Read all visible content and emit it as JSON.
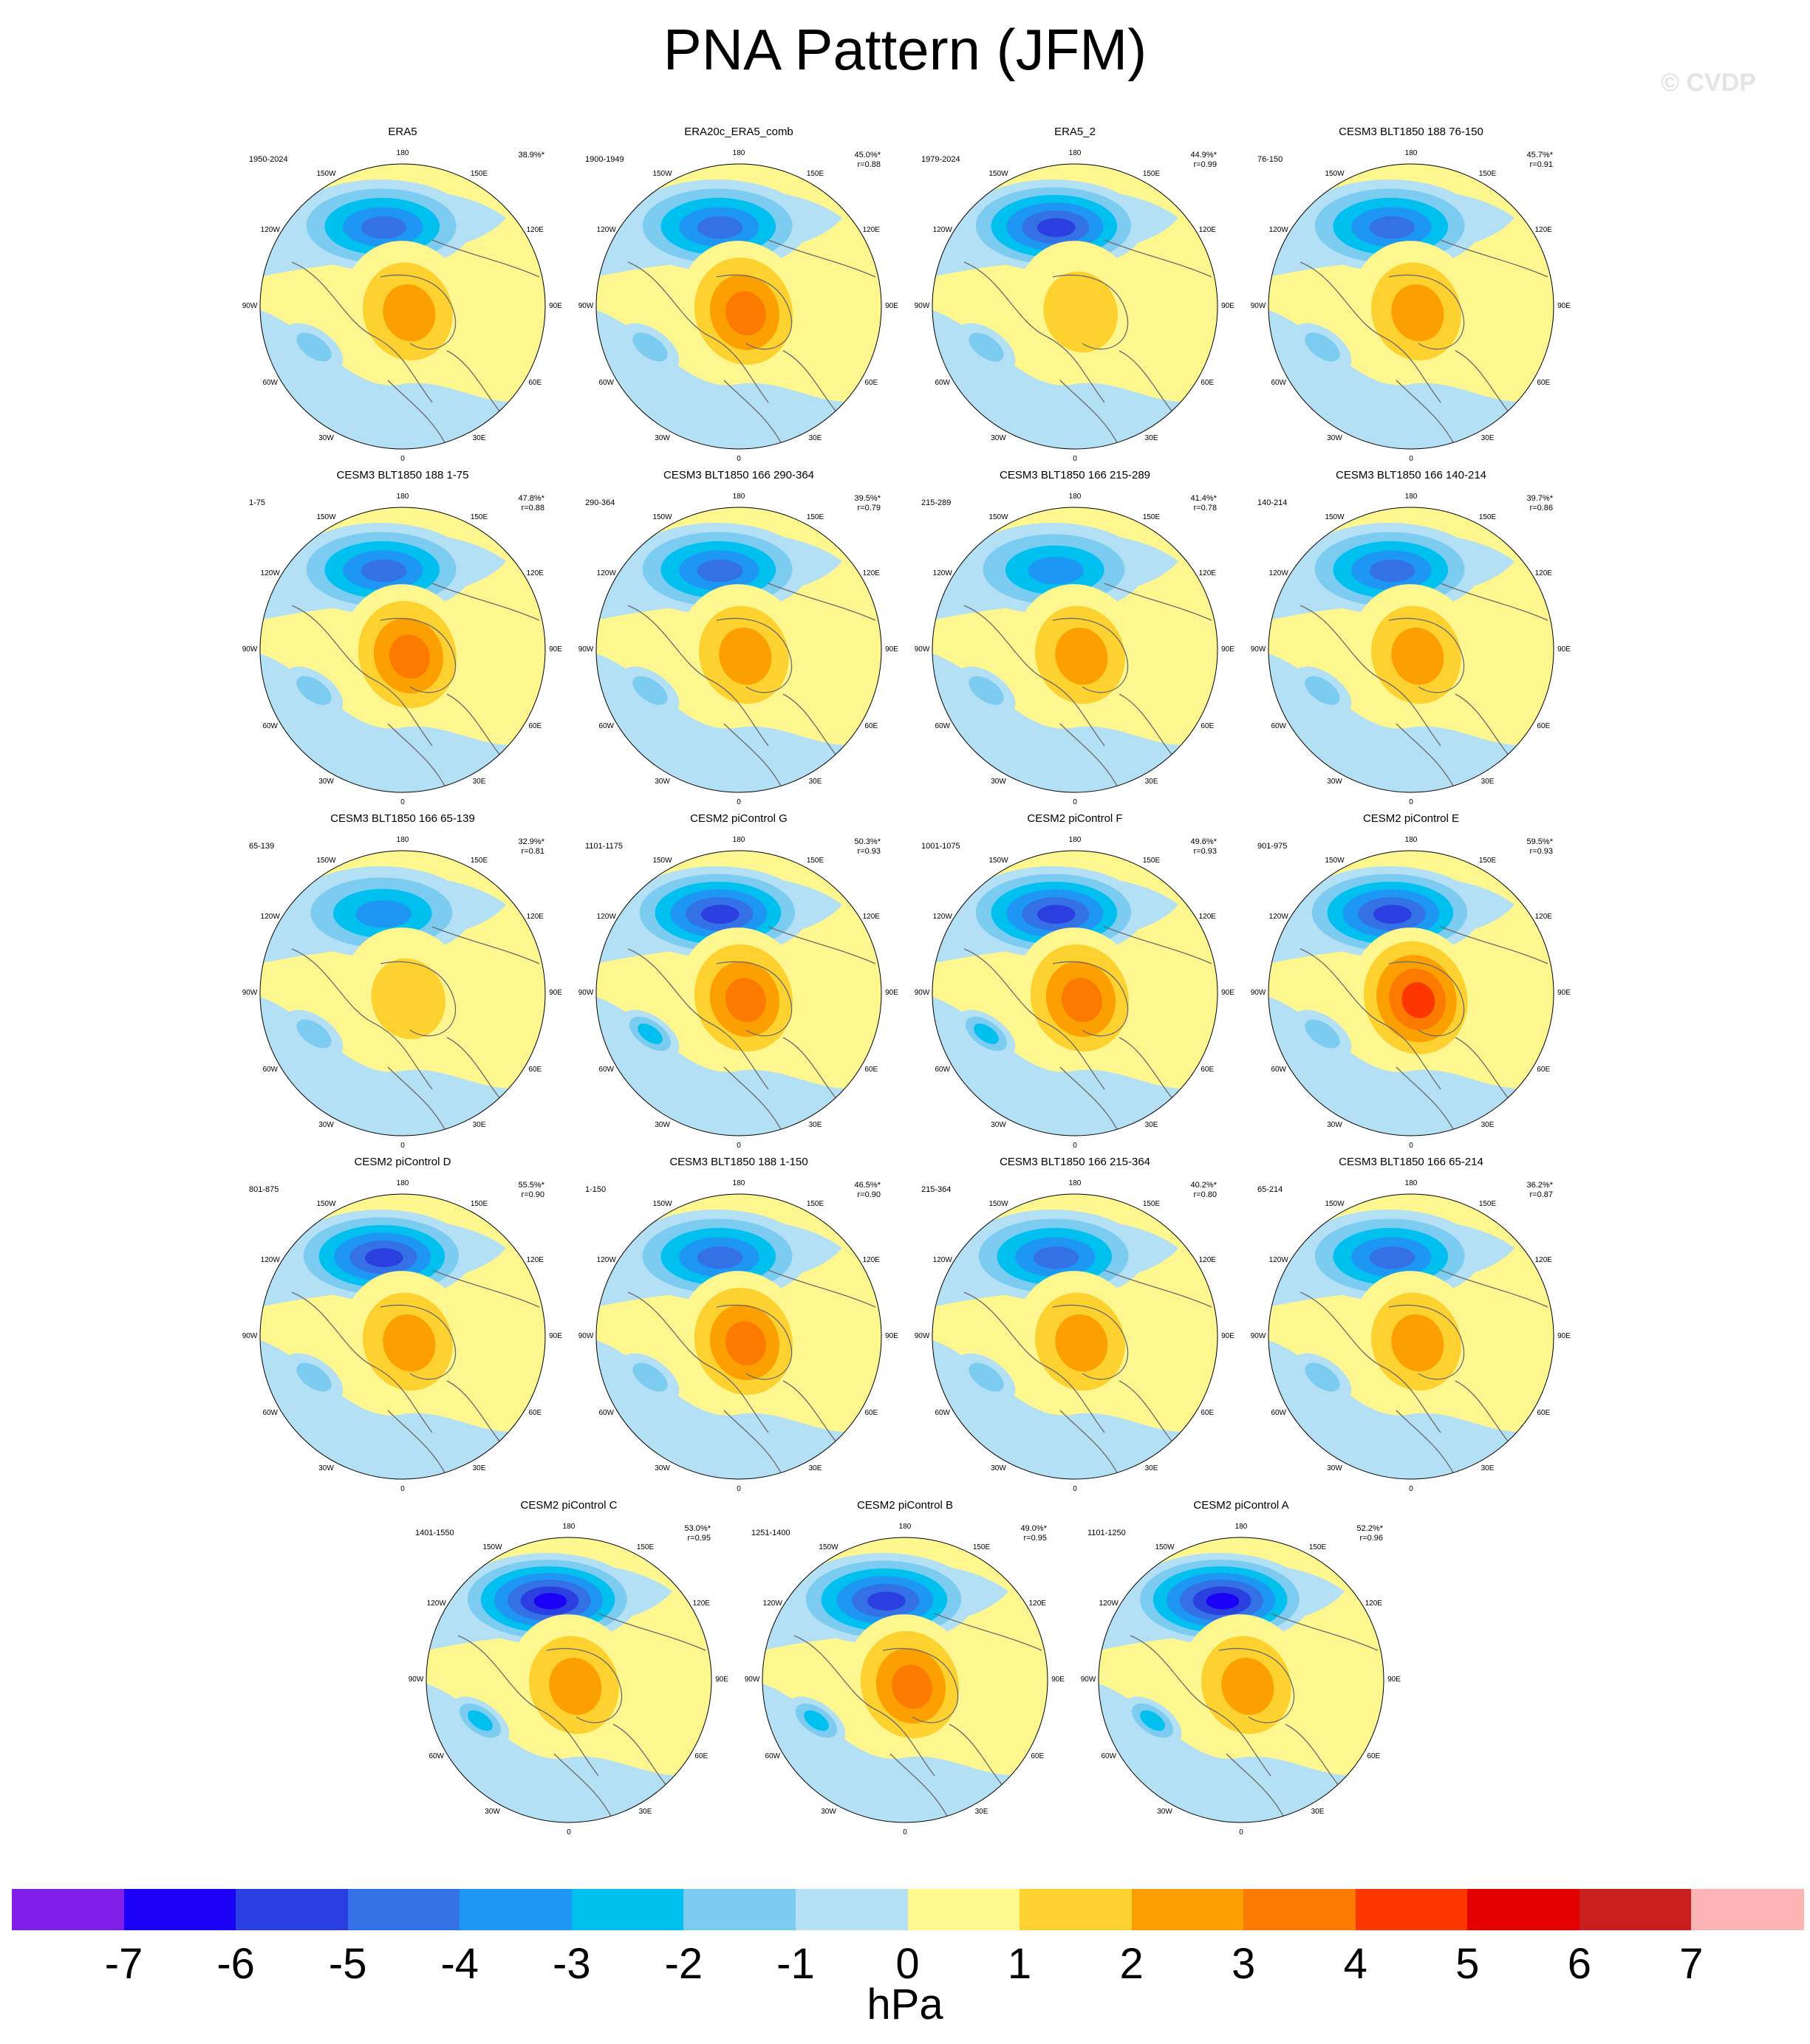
{
  "title": "PNA Pattern (JFM)",
  "watermark": "© CVDP",
  "lon_labels": [
    "180",
    "150E",
    "120E",
    "90E",
    "60E",
    "30E",
    "0",
    "30W",
    "60W",
    "90W",
    "120W",
    "150W"
  ],
  "chart_data": {
    "type": "heatmap",
    "description_of_quantity": "PNA regression pattern",
    "panels": [
      {
        "title": "ERA5",
        "period": "1950-2024",
        "pct": "38.9%*",
        "r": ""
      },
      {
        "title": "ERA20c_ERA5_comb",
        "period": "1900-1949",
        "pct": "45.0%*",
        "r": "r=0.88"
      },
      {
        "title": "ERA5_2",
        "period": "1979-2024",
        "pct": "44.9%*",
        "r": "r=0.99"
      },
      {
        "title": "CESM3 BLT1850 188 76-150",
        "period": "76-150",
        "pct": "45.7%*",
        "r": "r=0.91"
      },
      {
        "title": "CESM3 BLT1850 188 1-75",
        "period": "1-75",
        "pct": "47.8%*",
        "r": "r=0.88"
      },
      {
        "title": "CESM3 BLT1850 166 290-364",
        "period": "290-364",
        "pct": "39.5%*",
        "r": "r=0.79"
      },
      {
        "title": "CESM3 BLT1850 166 215-289",
        "period": "215-289",
        "pct": "41.4%*",
        "r": "r=0.78"
      },
      {
        "title": "CESM3 BLT1850 166 140-214",
        "period": "140-214",
        "pct": "39.7%*",
        "r": "r=0.86"
      },
      {
        "title": "CESM3 BLT1850 166 65-139",
        "period": "65-139",
        "pct": "32.9%*",
        "r": "r=0.81"
      },
      {
        "title": "CESM2 piControl G",
        "period": "1101-1175",
        "pct": "50.3%*",
        "r": "r=0.93"
      },
      {
        "title": "CESM2 piControl F",
        "period": "1001-1075",
        "pct": "49.6%*",
        "r": "r=0.93"
      },
      {
        "title": "CESM2 piControl E",
        "period": "901-975",
        "pct": "59.5%*",
        "r": "r=0.93"
      },
      {
        "title": "CESM2 piControl D",
        "period": "801-875",
        "pct": "55.5%*",
        "r": "r=0.90"
      },
      {
        "title": "CESM3 BLT1850 188 1-150",
        "period": "1-150",
        "pct": "46.5%*",
        "r": "r=0.90"
      },
      {
        "title": "CESM3 BLT1850 166 215-364",
        "period": "215-364",
        "pct": "40.2%*",
        "r": "r=0.80"
      },
      {
        "title": "CESM3 BLT1850 166 65-214",
        "period": "65-214",
        "pct": "36.2%*",
        "r": "r=0.87"
      },
      {
        "title": "CESM2 piControl C",
        "period": "1401-1550",
        "pct": "53.0%*",
        "r": "r=0.95"
      },
      {
        "title": "CESM2 piControl B",
        "period": "1251-1400",
        "pct": "49.0%*",
        "r": "r=0.95"
      },
      {
        "title": "CESM2 piControl A",
        "period": "1101-1250",
        "pct": "52.2%*",
        "r": "r=0.96"
      }
    ],
    "colorbar": {
      "unit": "hPa",
      "ticks": [
        "-7",
        "-6",
        "-5",
        "-4",
        "-3",
        "-2",
        "-1",
        "0",
        "1",
        "2",
        "3",
        "4",
        "5",
        "6",
        "7"
      ],
      "colors": [
        "#7f1fe8",
        "#1a00f5",
        "#2b3fe0",
        "#3470e6",
        "#1e96f3",
        "#00c0f0",
        "#7ccbf0",
        "#b4e0f5",
        "#fef68f",
        "#fdd130",
        "#fba000",
        "#fd7a00",
        "#fd3600",
        "#e50000",
        "#c81e1e",
        "#fdb4b4"
      ]
    },
    "patterns": {
      "low_value_min": [
        -4.6,
        -4.2,
        -5.1,
        -4.4,
        -4.7,
        -4.2,
        -4.0,
        -4.1,
        -3.6,
        -6.0,
        -5.6,
        -6.0,
        -6.0,
        -5.0,
        -4.8,
        -4.6,
        -6.1,
        -5.9,
        -6.2
      ],
      "high_value_max": [
        2.4,
        3.2,
        1.6,
        2.5,
        3.1,
        2.7,
        2.8,
        2.3,
        1.8,
        3.5,
        3.2,
        4.3,
        2.9,
        3.1,
        2.8,
        2.7,
        3.0,
        3.2,
        2.8
      ],
      "atlantic_low_min": [
        -1.6,
        -1.8,
        -1.8,
        -1.6,
        -1.6,
        -1.4,
        -1.8,
        -1.3,
        -1.3,
        -2.2,
        -2.3,
        -2.0,
        -2.0,
        -1.7,
        -1.5,
        -1.4,
        -2.1,
        -2.2,
        -2.1
      ]
    }
  }
}
